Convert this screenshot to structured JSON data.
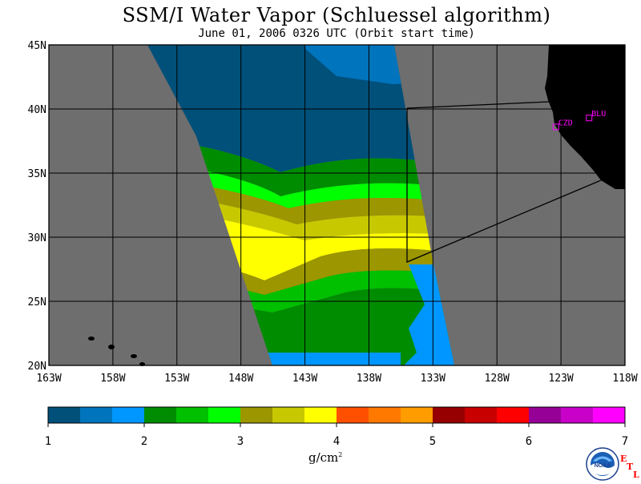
{
  "title": "SSM/I Water Vapor (Schluessel algorithm)",
  "subtitle": "June 01, 2006  0326 UTC  (Orbit start time)",
  "colors": {
    "ocean_no_data": "#6e6e6e",
    "land": "#000000",
    "station_marker": "#ff00ff",
    "etl_text": "#ff0000"
  },
  "map": {
    "lon_range": [
      -163,
      -118
    ],
    "lat_range": [
      20,
      45
    ],
    "lat_labels": [
      "20N",
      "25N",
      "30N",
      "35N",
      "40N",
      "45N"
    ],
    "lon_labels": [
      "163W",
      "158W",
      "153W",
      "148W",
      "143W",
      "138W",
      "133W",
      "128W",
      "123W",
      "118W"
    ],
    "gridlines": true,
    "stations": [
      {
        "code": "CZD",
        "lon": -123.4,
        "lat": 38.6
      },
      {
        "code": "BLU",
        "lon": -120.8,
        "lat": 39.3
      }
    ]
  },
  "colorbar": {
    "unit": "g/cm",
    "unit_exponent": "2",
    "tick_labels": [
      "1",
      "2",
      "3",
      "4",
      "5",
      "6",
      "7"
    ],
    "range": [
      1,
      7
    ],
    "colors": [
      "#00507a",
      "#0074bc",
      "#0096ff",
      "#008c00",
      "#00c000",
      "#00ff00",
      "#9c9600",
      "#c8c800",
      "#ffff00",
      "#ff5000",
      "#ff7800",
      "#ff9c00",
      "#960000",
      "#c80000",
      "#ff0000",
      "#960096",
      "#c800c8",
      "#ff00ff"
    ]
  },
  "logo": {
    "name": "noaa-logo",
    "text": "NOAA",
    "etl": [
      "E",
      "T",
      "L"
    ]
  }
}
